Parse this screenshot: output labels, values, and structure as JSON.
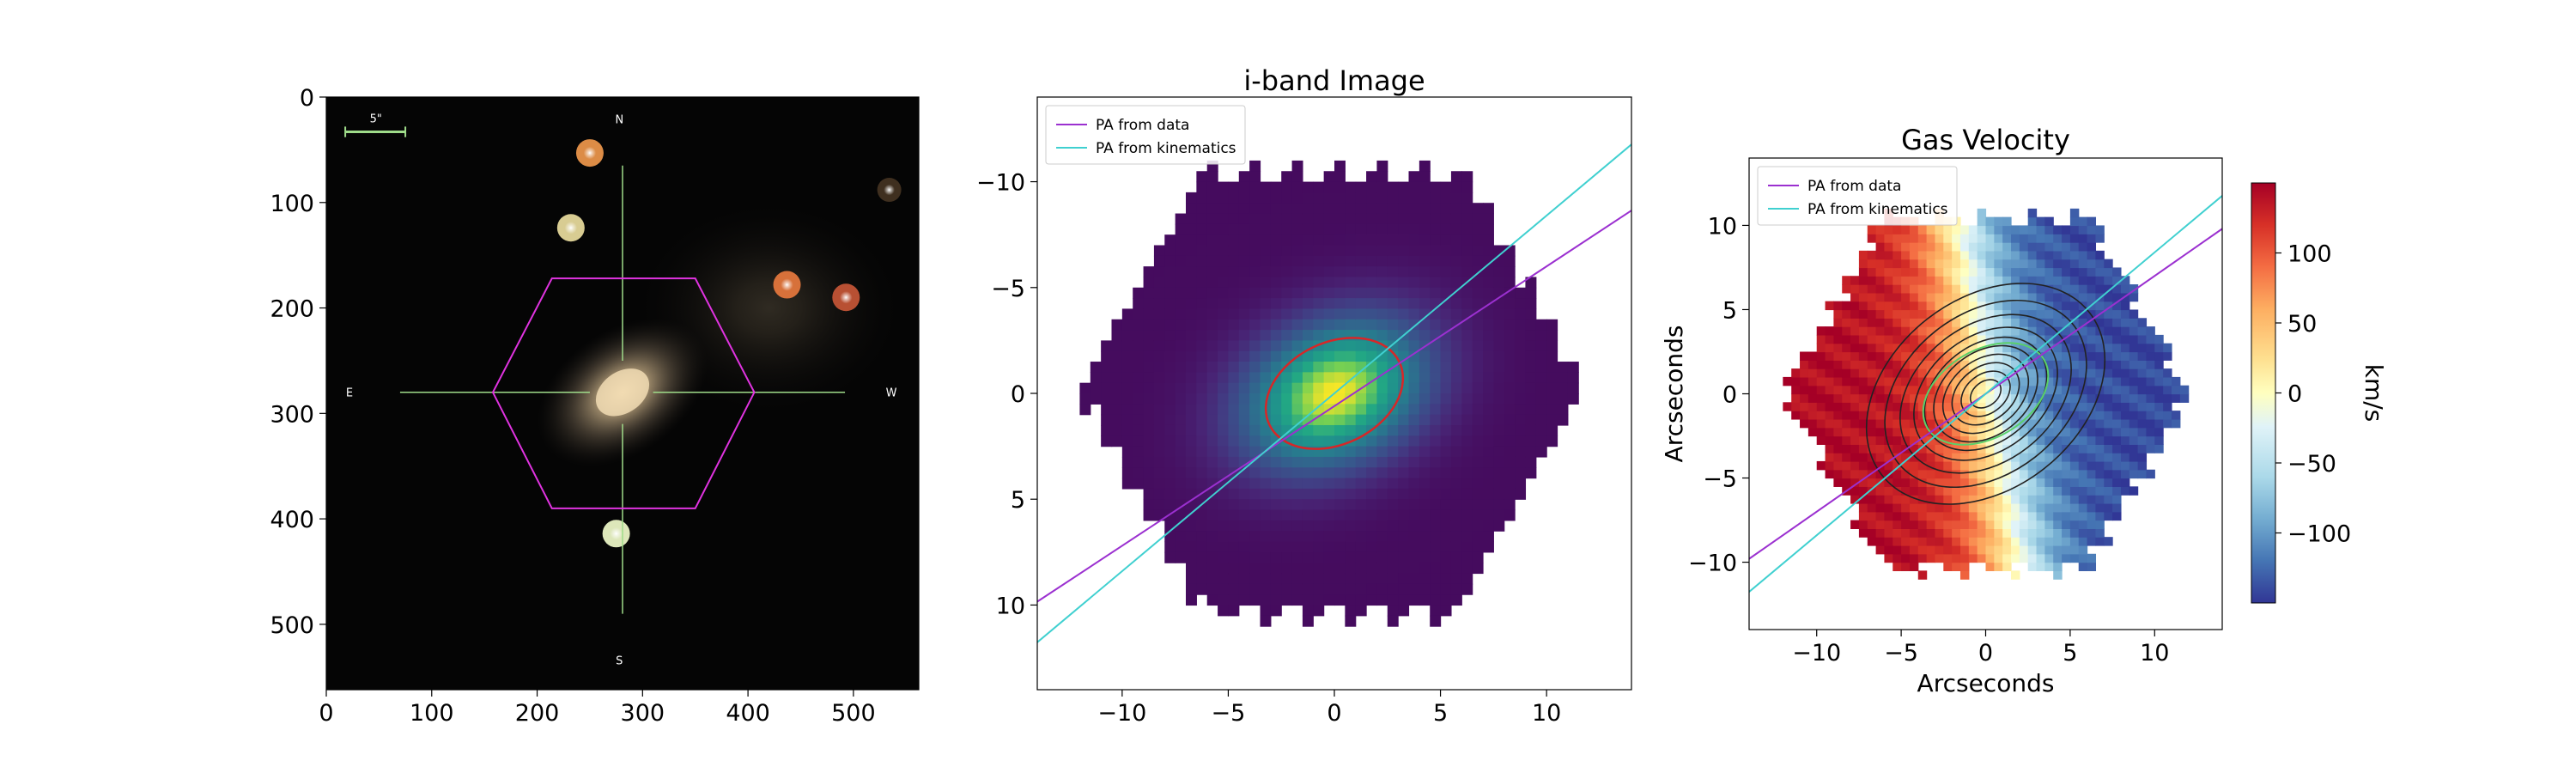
{
  "chart_data": [
    {
      "type": "image",
      "title": "",
      "xlabel": "",
      "ylabel": "",
      "xlim": [
        0,
        562
      ],
      "ylim": [
        562,
        0
      ],
      "xticks": [
        0,
        100,
        200,
        300,
        400,
        500
      ],
      "yticks": [
        0,
        100,
        200,
        300,
        400,
        500
      ],
      "scale_bar_label": "5\"",
      "compass": {
        "north": "N",
        "south": "S",
        "east": "E",
        "west": "W"
      },
      "ifu_hexagon": [
        [
          214,
          172
        ],
        [
          350,
          172
        ],
        [
          406,
          280
        ],
        [
          350,
          390
        ],
        [
          214,
          390
        ],
        [
          158,
          280
        ]
      ],
      "crosshair_center": [
        281,
        280
      ],
      "galaxy_center": [
        281,
        280
      ],
      "stars": [
        {
          "x": 250,
          "y": 53,
          "color": "#e8934a"
        },
        {
          "x": 232,
          "y": 124,
          "color": "#e4d79a"
        },
        {
          "x": 437,
          "y": 178,
          "color": "#e2763c"
        },
        {
          "x": 493,
          "y": 190,
          "color": "#c25436"
        },
        {
          "x": 275,
          "y": 414,
          "color": "#e9f3c4"
        },
        {
          "x": 534,
          "y": 88,
          "color": "#7a5a3a"
        }
      ],
      "colors": {
        "background": "#050505",
        "hexagon": "#e033e0",
        "crosshair": "#9fdc8a",
        "scale_bar": "#9fdc8a",
        "galaxy": "#cdb48a"
      }
    },
    {
      "type": "heatmap",
      "title": "i-band Image",
      "xlabel": "",
      "ylabel": "",
      "xlim": [
        -14,
        14
      ],
      "ylim": [
        14,
        -14
      ],
      "xticks": [
        -10,
        -5,
        0,
        5,
        10
      ],
      "yticks": [
        -10,
        -5,
        0,
        5,
        10
      ],
      "colormap": "viridis",
      "hexagon_extent": {
        "center": [
          0,
          0
        ],
        "radius": 12
      },
      "ellipse": {
        "center": [
          0,
          0
        ],
        "rx": 3.4,
        "ry": 2.4,
        "angle_deg": -26,
        "color": "#d62728"
      },
      "series": [
        {
          "name": "PA from data",
          "color": "#9b30d0",
          "slope": -0.66,
          "intercept": 0.6
        },
        {
          "name": "PA from kinematics",
          "color": "#40d0d0",
          "slope": -0.84,
          "intercept": 0
        }
      ],
      "legend": {
        "location": "upper-left"
      }
    },
    {
      "type": "heatmap",
      "title": "Gas Velocity",
      "xlabel": "Arcseconds",
      "ylabel": "Arcseconds",
      "xlim": [
        -14,
        14
      ],
      "ylim": [
        -14,
        14
      ],
      "xticks": [
        -10,
        -5,
        0,
        5,
        10
      ],
      "yticks": [
        -10,
        -5,
        0,
        5,
        10
      ],
      "colormap": "RdYlBu_r",
      "colorbar": {
        "label": "km/s",
        "range": [
          -150,
          150
        ],
        "ticks": [
          100,
          50,
          0,
          -50,
          -100
        ],
        "tick_labels": [
          "100",
          "50",
          "0",
          "−50",
          "−100"
        ]
      },
      "velocity_field": {
        "amplitude": 150,
        "zero_line_angle_deg": 100,
        "hexagon_radius": 12
      },
      "contours": {
        "center": [
          0,
          0
        ],
        "angle_deg": 38,
        "axis_ratio": 0.72,
        "semimajor": [
          1.0,
          1.6,
          2.2,
          2.8,
          3.4,
          4.0,
          4.7,
          5.6,
          6.6,
          7.8
        ],
        "color": "#222222"
      },
      "ellipse": {
        "center": [
          0,
          0
        ],
        "rx": 4.0,
        "ry": 2.6,
        "angle_deg": 30,
        "color": "#5ad06a"
      },
      "series": [
        {
          "name": "PA from data",
          "color": "#9b30d0",
          "slope": 0.7,
          "intercept": 0
        },
        {
          "name": "PA from kinematics",
          "color": "#40d0d0",
          "slope": 0.84,
          "intercept": 0
        }
      ],
      "legend": {
        "location": "upper-left"
      }
    }
  ]
}
